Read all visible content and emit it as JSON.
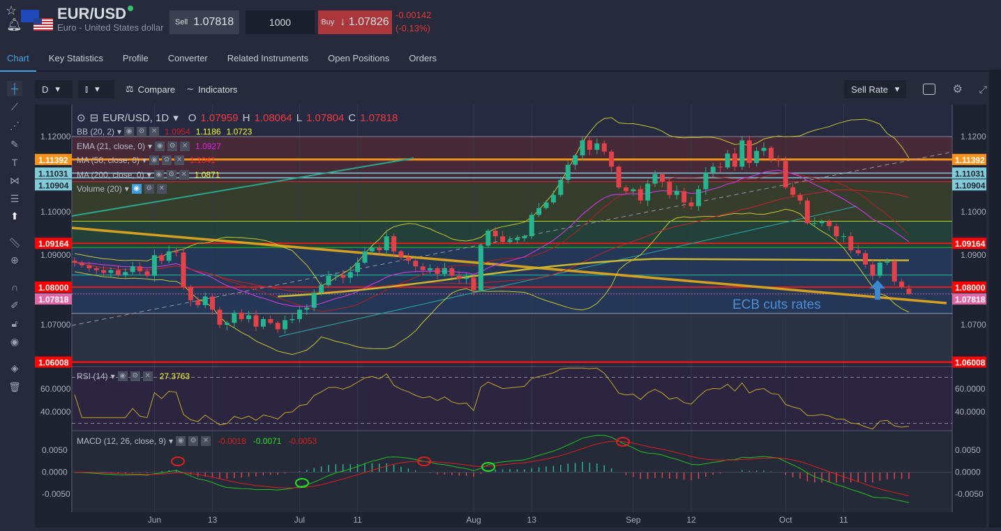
{
  "header": {
    "symbol": "EUR/USD",
    "description": "Euro - United States dollar",
    "sell_label": "Sell",
    "sell_price": "1.07818",
    "quantity": "1000",
    "buy_label": "Buy",
    "buy_arrow": "↓",
    "buy_price": "1.07826",
    "change": "-0.00142",
    "change_pct": "(-0.13%)"
  },
  "tabs": [
    {
      "label": "Chart",
      "active": true
    },
    {
      "label": "Key Statistics"
    },
    {
      "label": "Profile"
    },
    {
      "label": "Converter"
    },
    {
      "label": "Related Instruments"
    },
    {
      "label": "Open Positions"
    },
    {
      "label": "Orders"
    }
  ],
  "toolbar": {
    "interval": "D",
    "compare": "Compare",
    "indicators": "Indicators",
    "rate": "Sell Rate"
  },
  "legend": {
    "symbol": "EUR/USD, 1D",
    "o_label": "O",
    "o": "1.07959",
    "h_label": "H",
    "h": "1.08064",
    "l_label": "L",
    "l": "1.07804",
    "c_label": "C",
    "c": "1.07818",
    "bb": {
      "name": "BB (20, 2)",
      "v1": "1.0954",
      "v2": "1.1186",
      "v3": "1.0723"
    },
    "ema": {
      "name": "EMA (21, close, 0)",
      "v": "1.0927"
    },
    "ma50": {
      "name": "MA (50, close, 0)",
      "v": "1.1041"
    },
    "ma200": {
      "name": "MA (200, close, 0)",
      "v": "1.0871"
    },
    "volume": {
      "name": "Volume (20)"
    },
    "rsi": {
      "name": "RSI (14)",
      "v": "27.3763"
    },
    "macd": {
      "name": "MACD (12, 26, close, 9)",
      "v1": "-0.0018",
      "v2": "-0.0071",
      "v3": "-0.0053"
    }
  },
  "annotation": "ECB cuts rates",
  "colors": {
    "up": "#26b58f",
    "down": "#e2434b",
    "bb": "#c8c832",
    "ema": "#c23bd4",
    "ma50": "#c8242a",
    "ma200": "#c9b830",
    "accent": "#4ba3e3"
  },
  "chart_data": {
    "type": "candlestick",
    "title": "EUR/USD, 1D",
    "closes": [
      1.0865,
      1.0858,
      1.085,
      1.0845,
      1.0838,
      1.0845,
      1.0832,
      1.084,
      1.0855,
      1.0842,
      1.083,
      1.0885,
      1.087,
      1.0895,
      1.0892,
      1.08,
      1.0765,
      1.0752,
      1.0775,
      1.074,
      1.07,
      1.0705,
      1.0732,
      1.0715,
      1.0725,
      1.0695,
      1.0715,
      1.0705,
      1.0688,
      1.0712,
      1.0715,
      1.074,
      1.0745,
      1.0785,
      1.0805,
      1.083,
      1.0832,
      1.0825,
      1.084,
      1.0865,
      1.0895,
      1.0905,
      1.0898,
      1.0935,
      1.0895,
      1.088,
      1.087,
      1.0855,
      1.0845,
      1.085,
      1.0835,
      1.085,
      1.083,
      1.0822,
      1.0825,
      1.0792,
      1.091,
      1.095,
      1.0935,
      1.092,
      1.0925,
      1.093,
      1.0935,
      1.0992,
      1.101,
      1.1025,
      1.1045,
      1.1085,
      1.1125,
      1.115,
      1.119,
      1.1165,
      1.1182,
      1.116,
      1.112,
      1.1065,
      1.1055,
      1.106,
      1.103,
      1.1075,
      1.11,
      1.108,
      1.1045,
      1.1055,
      1.1025,
      1.1015,
      1.106,
      1.1105,
      1.112,
      1.1118,
      1.1155,
      1.112,
      1.119,
      1.113,
      1.1162,
      1.117,
      1.114,
      1.1135,
      1.1065,
      1.1045,
      1.103,
      1.097,
      1.097,
      1.0975,
      1.0962,
      1.0935,
      1.0935,
      1.0898,
      1.089,
      1.086,
      1.083,
      1.0865,
      1.0868,
      1.0815,
      1.08,
      1.0782
    ],
    "first_open": 1.087,
    "last_candle": {
      "open": 1.07959,
      "high": 1.08064,
      "low": 1.07804,
      "close": 1.07818
    },
    "x_ticks": [
      {
        "i": 11,
        "label": "Jun"
      },
      {
        "i": 19,
        "label": "13"
      },
      {
        "i": 31,
        "label": "Jul"
      },
      {
        "i": 39,
        "label": "11"
      },
      {
        "i": 55,
        "label": "Aug"
      },
      {
        "i": 63,
        "label": "13"
      },
      {
        "i": 77,
        "label": "Sep"
      },
      {
        "i": 85,
        "label": "12"
      },
      {
        "i": 98,
        "label": "Oct"
      },
      {
        "i": 106,
        "label": "11"
      }
    ],
    "y_range": [
      1.053,
      1.1265
    ],
    "y_ticks": [
      "1.12000",
      "1.10000",
      "1.09000",
      "1.07000"
    ],
    "price_tags": [
      {
        "v": 1.11392,
        "label": "1.11392",
        "color": "#f7931a",
        "text": "#fff"
      },
      {
        "v": 1.11031,
        "label": "1.11031",
        "color": "#7fcbd8",
        "text": "#1f2331"
      },
      {
        "v": 1.10904,
        "label": "1.10904",
        "color": "#7fcbd8",
        "text": "#1f2331"
      },
      {
        "v": 1.09164,
        "label": "1.09164",
        "color": "#ff0000",
        "text": "#fff"
      },
      {
        "v": 1.08,
        "label": "1.08000",
        "color": "#ff0000",
        "text": "#fff"
      },
      {
        "v": 1.07818,
        "label": "1.07818",
        "color": "#e066a6",
        "text": "#fff"
      },
      {
        "v": 1.06008,
        "label": "1.06008",
        "color": "#ff0000",
        "text": "#fff"
      }
    ],
    "rsi_ticks": [
      "60.0000",
      "40.0000"
    ],
    "rsi_range": [
      24.2,
      78.8
    ],
    "macd_ticks": [
      "0.0050",
      "0.0000",
      "-0.0050"
    ],
    "macd_range": [
      -0.0091,
      0.0093
    ]
  }
}
